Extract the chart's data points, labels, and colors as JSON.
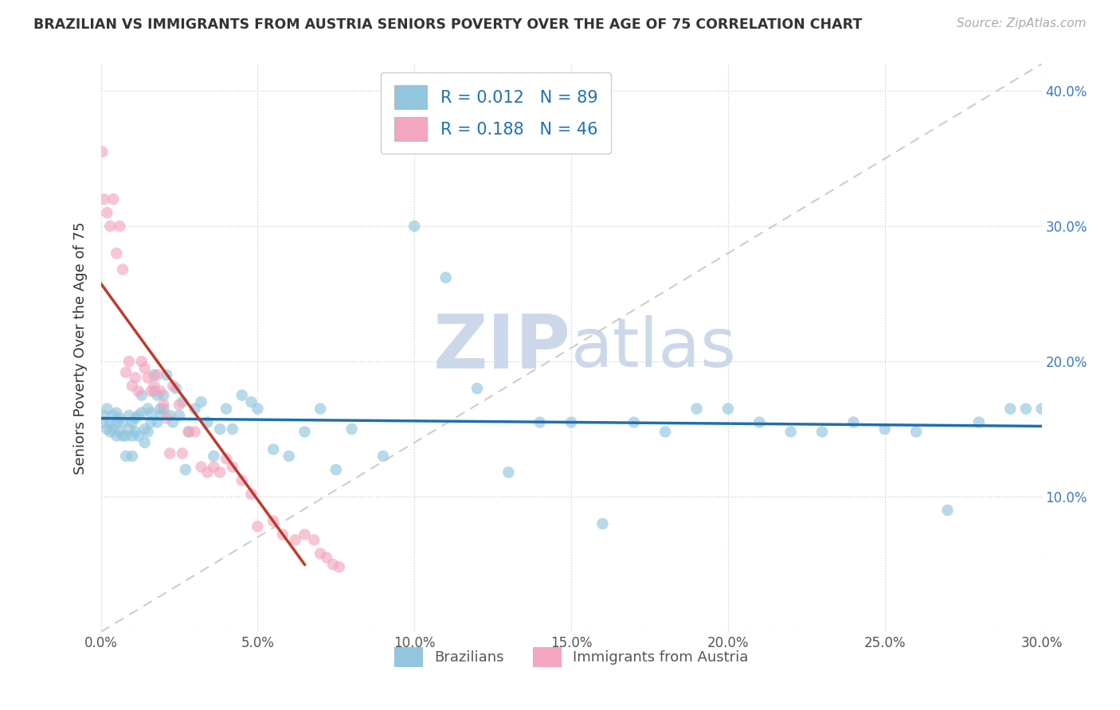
{
  "title": "BRAZILIAN VS IMMIGRANTS FROM AUSTRIA SENIORS POVERTY OVER THE AGE OF 75 CORRELATION CHART",
  "source": "Source: ZipAtlas.com",
  "ylabel": "Seniors Poverty Over the Age of 75",
  "xlim": [
    0.0,
    0.3
  ],
  "ylim": [
    0.0,
    0.42
  ],
  "xticks": [
    0.0,
    0.05,
    0.1,
    0.15,
    0.2,
    0.25,
    0.3
  ],
  "yticks": [
    0.0,
    0.1,
    0.2,
    0.3,
    0.4
  ],
  "color_blue": "#92c5de",
  "color_pink": "#f4a6be",
  "color_blue_line": "#1f6fad",
  "color_pink_line": "#c0392b",
  "color_diag_line": "#c8c8c8",
  "watermark_zip": "ZIP",
  "watermark_atlas": "atlas",
  "watermark_color": "#ccd8ea",
  "brazilians_x": [
    0.001,
    0.001,
    0.002,
    0.002,
    0.003,
    0.003,
    0.004,
    0.004,
    0.005,
    0.005,
    0.005,
    0.006,
    0.006,
    0.007,
    0.007,
    0.008,
    0.008,
    0.009,
    0.009,
    0.01,
    0.01,
    0.01,
    0.011,
    0.011,
    0.012,
    0.012,
    0.013,
    0.013,
    0.014,
    0.014,
    0.015,
    0.015,
    0.016,
    0.016,
    0.017,
    0.017,
    0.018,
    0.018,
    0.019,
    0.019,
    0.02,
    0.02,
    0.021,
    0.022,
    0.023,
    0.024,
    0.025,
    0.026,
    0.027,
    0.028,
    0.03,
    0.032,
    0.034,
    0.036,
    0.038,
    0.04,
    0.042,
    0.045,
    0.048,
    0.05,
    0.055,
    0.06,
    0.065,
    0.07,
    0.075,
    0.08,
    0.09,
    0.1,
    0.11,
    0.12,
    0.13,
    0.14,
    0.15,
    0.16,
    0.17,
    0.18,
    0.19,
    0.2,
    0.21,
    0.22,
    0.23,
    0.24,
    0.25,
    0.26,
    0.27,
    0.28,
    0.29,
    0.295,
    0.3
  ],
  "brazilians_y": [
    0.155,
    0.16,
    0.15,
    0.165,
    0.148,
    0.155,
    0.15,
    0.16,
    0.145,
    0.155,
    0.162,
    0.148,
    0.158,
    0.145,
    0.155,
    0.13,
    0.145,
    0.15,
    0.16,
    0.13,
    0.145,
    0.155,
    0.148,
    0.158,
    0.145,
    0.16,
    0.162,
    0.175,
    0.14,
    0.15,
    0.148,
    0.165,
    0.155,
    0.162,
    0.178,
    0.19,
    0.155,
    0.175,
    0.16,
    0.165,
    0.165,
    0.175,
    0.19,
    0.16,
    0.155,
    0.18,
    0.16,
    0.17,
    0.12,
    0.148,
    0.165,
    0.17,
    0.155,
    0.13,
    0.15,
    0.165,
    0.15,
    0.175,
    0.17,
    0.165,
    0.135,
    0.13,
    0.148,
    0.165,
    0.12,
    0.15,
    0.13,
    0.3,
    0.262,
    0.18,
    0.118,
    0.155,
    0.155,
    0.08,
    0.155,
    0.148,
    0.165,
    0.165,
    0.155,
    0.148,
    0.148,
    0.155,
    0.15,
    0.148,
    0.09,
    0.155,
    0.165,
    0.165,
    0.165
  ],
  "austria_x": [
    0.0005,
    0.001,
    0.002,
    0.003,
    0.004,
    0.005,
    0.006,
    0.007,
    0.008,
    0.009,
    0.01,
    0.011,
    0.012,
    0.013,
    0.014,
    0.015,
    0.016,
    0.017,
    0.018,
    0.019,
    0.02,
    0.021,
    0.022,
    0.023,
    0.025,
    0.026,
    0.028,
    0.03,
    0.032,
    0.034,
    0.036,
    0.038,
    0.04,
    0.042,
    0.045,
    0.048,
    0.05,
    0.055,
    0.058,
    0.062,
    0.065,
    0.068,
    0.07,
    0.072,
    0.074,
    0.076
  ],
  "austria_y": [
    0.355,
    0.32,
    0.31,
    0.3,
    0.32,
    0.28,
    0.3,
    0.268,
    0.192,
    0.2,
    0.182,
    0.188,
    0.178,
    0.2,
    0.195,
    0.188,
    0.178,
    0.182,
    0.19,
    0.178,
    0.168,
    0.158,
    0.132,
    0.182,
    0.168,
    0.132,
    0.148,
    0.148,
    0.122,
    0.118,
    0.122,
    0.118,
    0.128,
    0.122,
    0.112,
    0.102,
    0.078,
    0.082,
    0.072,
    0.068,
    0.072,
    0.068,
    0.058,
    0.055,
    0.05,
    0.048
  ],
  "blue_line_x_start": 0.0,
  "blue_line_x_end": 0.3,
  "pink_line_x_start": 0.0,
  "pink_line_x_end": 0.065
}
